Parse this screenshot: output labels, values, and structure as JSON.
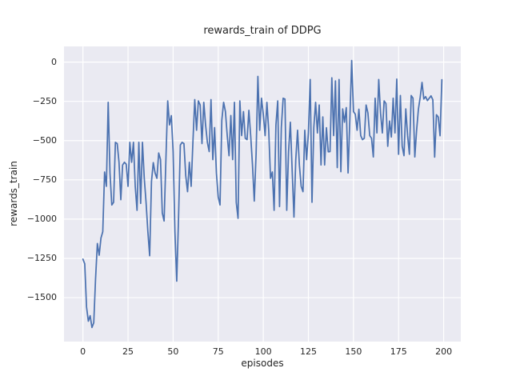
{
  "figure": {
    "title": "rewards_train of DDPG",
    "xlabel": "episodes",
    "ylabel": "rewards_train"
  },
  "colors": {
    "line": "#4C72B0",
    "axes_background": "#EAEAF2",
    "grid": "#FFFFFF",
    "text": "#262626",
    "figure_background": "#FFFFFF"
  },
  "chart_data": {
    "type": "line",
    "title": "rewards_train of DDPG",
    "xlabel": "episodes",
    "ylabel": "rewards_train",
    "grid": true,
    "legend": false,
    "xlim": [
      -10.5,
      209.5
    ],
    "ylim": [
      -1780,
      100
    ],
    "x_ticks": [
      0,
      25,
      50,
      75,
      100,
      125,
      150,
      175,
      200
    ],
    "x_tick_labels": [
      "0",
      "25",
      "50",
      "75",
      "100",
      "125",
      "150",
      "175",
      "200"
    ],
    "y_ticks": [
      0,
      -250,
      -500,
      -750,
      -1000,
      -1250,
      -1500
    ],
    "y_tick_labels": [
      "0",
      "−250",
      "−500",
      "−750",
      "−1000",
      "−1250",
      "−1500"
    ],
    "series": [
      {
        "name": "rewards_train",
        "x_is_index": true,
        "x_start": 0,
        "values": [
          -1255,
          -1285,
          -1560,
          -1650,
          -1615,
          -1690,
          -1660,
          -1380,
          -1155,
          -1230,
          -1120,
          -1080,
          -700,
          -791,
          -256,
          -706,
          -910,
          -893,
          -511,
          -519,
          -638,
          -876,
          -655,
          -638,
          -650,
          -791,
          -511,
          -638,
          -511,
          -791,
          -944,
          -511,
          -900,
          -511,
          -740,
          -893,
          -1080,
          -1233,
          -760,
          -640,
          -706,
          -740,
          -579,
          -620,
          -961,
          -1012,
          -621,
          -247,
          -400,
          -341,
          -570,
          -1080,
          -1395,
          -995,
          -528,
          -511,
          -519,
          -723,
          -825,
          -638,
          -791,
          -502,
          -239,
          -434,
          -247,
          -273,
          -519,
          -256,
          -400,
          -511,
          -570,
          -239,
          -621,
          -417,
          -706,
          -859,
          -910,
          -370,
          -256,
          -315,
          -468,
          -596,
          -340,
          -621,
          -256,
          -893,
          -995,
          -247,
          -468,
          -315,
          -485,
          -494,
          -307,
          -468,
          -655,
          -885,
          -587,
          -91,
          -434,
          -230,
          -332,
          -468,
          -256,
          -434,
          -740,
          -700,
          -944,
          -400,
          -247,
          -920,
          -417,
          -230,
          -235,
          -944,
          -570,
          -383,
          -689,
          -987,
          -621,
          -434,
          -655,
          -791,
          -825,
          -434,
          -621,
          -451,
          -111,
          -893,
          -417,
          -256,
          -451,
          -273,
          -655,
          -349,
          -655,
          -418,
          -571,
          -570,
          -100,
          -468,
          -120,
          -672,
          -111,
          -698,
          -298,
          -383,
          -290,
          -706,
          -358,
          10,
          -315,
          -332,
          -434,
          -300,
          -468,
          -494,
          -485,
          -273,
          -324,
          -468,
          -485,
          -604,
          -230,
          -451,
          -111,
          -324,
          -451,
          -247,
          -264,
          -536,
          -375,
          -477,
          -230,
          -451,
          -108,
          -587,
          -213,
          -536,
          -596,
          -298,
          -468,
          -587,
          -213,
          -230,
          -604,
          -434,
          -300,
          -223,
          -129,
          -235,
          -220,
          -245,
          -230,
          -215,
          -240,
          -605,
          -335,
          -350,
          -469,
          -112
        ]
      }
    ]
  }
}
